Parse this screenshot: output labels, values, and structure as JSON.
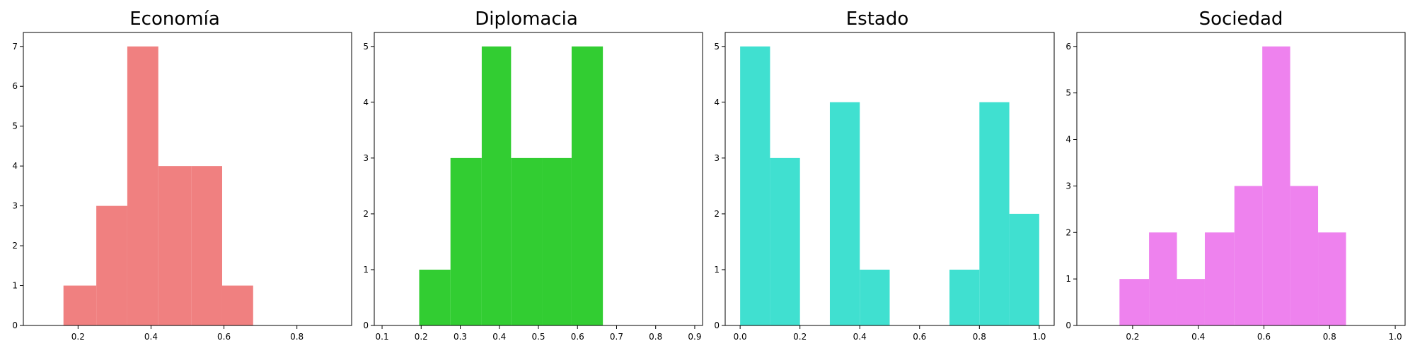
{
  "chart_data": [
    {
      "type": "bar",
      "title": "Economía",
      "color": "#f08080",
      "xlim": [
        0.05,
        0.95
      ],
      "ylim": [
        0,
        7.35
      ],
      "xticks": [
        "0.2",
        "0.4",
        "0.6",
        "0.8"
      ],
      "yticks": [
        "0",
        "1",
        "2",
        "3",
        "4",
        "5",
        "6",
        "7"
      ],
      "bins": [
        {
          "x0": 0.16,
          "x1": 0.25,
          "count": 1
        },
        {
          "x0": 0.25,
          "x1": 0.335,
          "count": 3
        },
        {
          "x0": 0.335,
          "x1": 0.42,
          "count": 7
        },
        {
          "x0": 0.42,
          "x1": 0.51,
          "count": 4
        },
        {
          "x0": 0.51,
          "x1": 0.595,
          "count": 4
        },
        {
          "x0": 0.595,
          "x1": 0.68,
          "count": 1
        }
      ]
    },
    {
      "type": "bar",
      "title": "Diplomacia",
      "color": "#32cd32",
      "xlim": [
        0.08,
        0.92
      ],
      "ylim": [
        0,
        5.25
      ],
      "xticks": [
        "0.1",
        "0.2",
        "0.3",
        "0.4",
        "0.5",
        "0.6",
        "0.7",
        "0.8",
        "0.9"
      ],
      "yticks": [
        "0",
        "1",
        "2",
        "3",
        "4",
        "5"
      ],
      "bins": [
        {
          "x0": 0.195,
          "x1": 0.275,
          "count": 1
        },
        {
          "x0": 0.275,
          "x1": 0.355,
          "count": 3
        },
        {
          "x0": 0.355,
          "x1": 0.43,
          "count": 5
        },
        {
          "x0": 0.43,
          "x1": 0.51,
          "count": 3
        },
        {
          "x0": 0.51,
          "x1": 0.585,
          "count": 3
        },
        {
          "x0": 0.585,
          "x1": 0.665,
          "count": 5
        }
      ]
    },
    {
      "type": "bar",
      "title": "Estado",
      "color": "#40e0d0",
      "xlim": [
        -0.05,
        1.05
      ],
      "ylim": [
        0,
        5.25
      ],
      "xticks": [
        "0.0",
        "0.2",
        "0.4",
        "0.6",
        "0.8",
        "1.0"
      ],
      "yticks": [
        "0",
        "1",
        "2",
        "3",
        "4",
        "5"
      ],
      "bins": [
        {
          "x0": 0.0,
          "x1": 0.1,
          "count": 5
        },
        {
          "x0": 0.1,
          "x1": 0.2,
          "count": 3
        },
        {
          "x0": 0.2,
          "x1": 0.3,
          "count": 0
        },
        {
          "x0": 0.3,
          "x1": 0.4,
          "count": 4
        },
        {
          "x0": 0.4,
          "x1": 0.5,
          "count": 1
        },
        {
          "x0": 0.5,
          "x1": 0.6,
          "count": 0
        },
        {
          "x0": 0.6,
          "x1": 0.7,
          "count": 0
        },
        {
          "x0": 0.7,
          "x1": 0.8,
          "count": 1
        },
        {
          "x0": 0.8,
          "x1": 0.9,
          "count": 4
        },
        {
          "x0": 0.9,
          "x1": 1.0,
          "count": 2
        }
      ]
    },
    {
      "type": "bar",
      "title": "Sociedad",
      "color": "#ee82ee",
      "xlim": [
        0.03,
        1.03
      ],
      "ylim": [
        0,
        6.3
      ],
      "xticks": [
        "0.2",
        "0.4",
        "0.6",
        "0.8",
        "1.0"
      ],
      "yticks": [
        "0",
        "1",
        "2",
        "3",
        "4",
        "5",
        "6"
      ],
      "bins": [
        {
          "x0": 0.16,
          "x1": 0.25,
          "count": 1
        },
        {
          "x0": 0.25,
          "x1": 0.335,
          "count": 2
        },
        {
          "x0": 0.335,
          "x1": 0.42,
          "count": 1
        },
        {
          "x0": 0.42,
          "x1": 0.51,
          "count": 2
        },
        {
          "x0": 0.51,
          "x1": 0.595,
          "count": 3
        },
        {
          "x0": 0.595,
          "x1": 0.68,
          "count": 6
        },
        {
          "x0": 0.68,
          "x1": 0.765,
          "count": 3
        },
        {
          "x0": 0.765,
          "x1": 0.85,
          "count": 2
        }
      ]
    }
  ]
}
